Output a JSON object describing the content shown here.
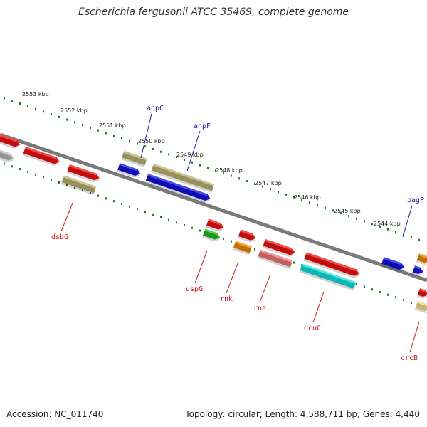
{
  "title": "Escherichia fergusonii ATCC 35469, complete genome",
  "footer": {
    "accession": "Accession: NC_011740",
    "summary": "Topology: circular; Length: 4,588,711 bp; Genes: 4,440"
  },
  "colors": {
    "backbone": "#7a7a7a",
    "ticks": "#1a7a1a",
    "label_forward": "#1a1aaa",
    "label_reverse": "#cc1111"
  },
  "position_ticks": [
    "2553 kbp",
    "2552 kbp",
    "2551 kbp",
    "2550 kbp",
    "2549 kbp",
    "2548 kbp",
    "2547 kbp",
    "2546 kbp",
    "2545 kbp",
    "2544 kbp"
  ],
  "gene_labels": [
    {
      "name": "ahpC",
      "strand": "forward"
    },
    {
      "name": "ahpF",
      "strand": "forward"
    },
    {
      "name": "pagP",
      "strand": "forward"
    },
    {
      "name": "dsbG",
      "strand": "reverse"
    },
    {
      "name": "uspG",
      "strand": "reverse"
    },
    {
      "name": "rnk",
      "strand": "reverse"
    },
    {
      "name": "rna",
      "strand": "reverse"
    },
    {
      "name": "dcuC",
      "strand": "reverse"
    },
    {
      "name": "crcB",
      "strand": "reverse"
    }
  ],
  "feature_colors": {
    "red": "#ee1111",
    "khaki": "#b9b070",
    "blue": "#1111dd",
    "gray": "#b8b8b8",
    "green": "#22bb22",
    "orange": "#ee8800",
    "pink": "#ee7777",
    "cyan": "#11dddd",
    "yellow": "#eedd88"
  }
}
